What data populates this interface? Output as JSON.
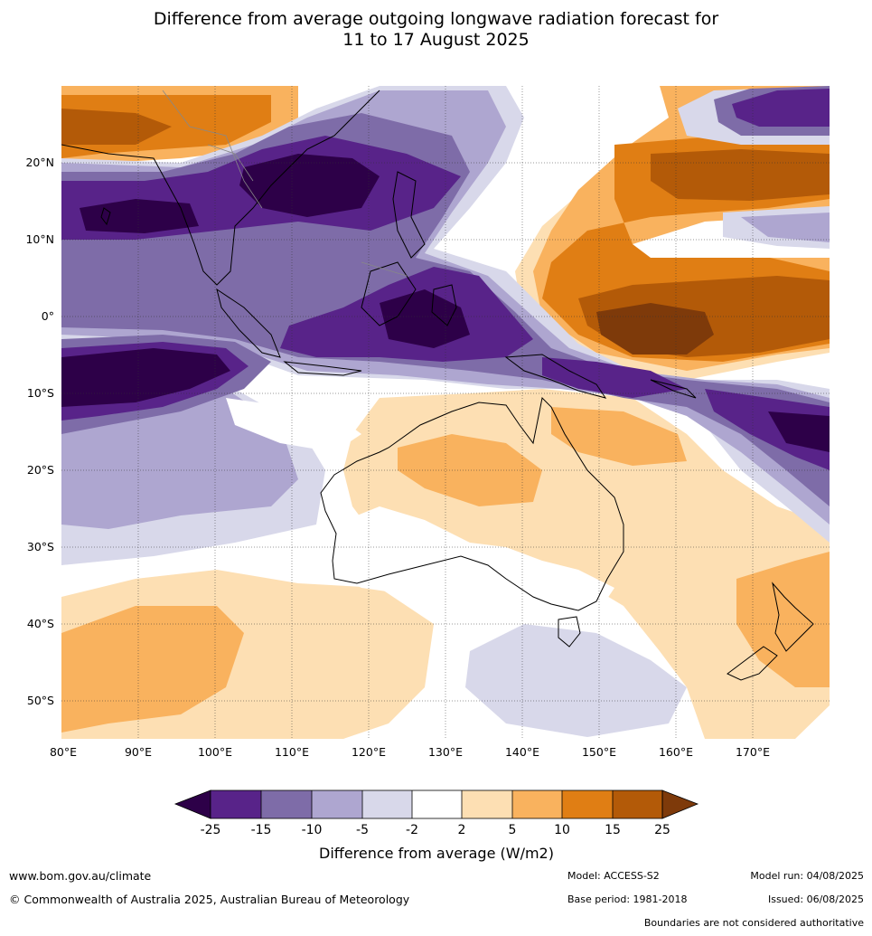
{
  "title": {
    "line1": "Difference from average outgoing longwave radiation forecast for",
    "line2": "11 to 17 August 2025"
  },
  "map": {
    "lat_labels": [
      "20°N",
      "10°N",
      "0°",
      "10°S",
      "20°S",
      "30°S",
      "40°S",
      "50°S"
    ],
    "lon_labels": [
      "80°E",
      "90°E",
      "100°E",
      "110°E",
      "120°E",
      "130°E",
      "140°E",
      "150°E",
      "160°E",
      "170°E"
    ],
    "ocean_fill": "#ffffff",
    "coastline_color": "#000000",
    "border_color": "#888888"
  },
  "legend": {
    "tick_labels": [
      "-25",
      "-15",
      "-10",
      "-5",
      "-2",
      "2",
      "5",
      "10",
      "15",
      "25"
    ],
    "colors": [
      "#2d0048",
      "#582389",
      "#7e6ca8",
      "#aea6d0",
      "#d8d8ea",
      "#ffffff",
      "#fddfb3",
      "#f9b25e",
      "#e07e14",
      "#b35a08",
      "#7e3a0a"
    ],
    "label": "Difference from average (W/m2)"
  },
  "footer": {
    "website": "www.bom.gov.au/climate",
    "copyright": "© Commonwealth of Australia 2025, Australian Bureau of Meteorology",
    "model": "Model: ACCESS-S2",
    "base_period": "Base period: 1981-2018",
    "model_run": "Model run: 04/08/2025",
    "issued": "Issued: 06/08/2025",
    "disclaimer": "Boundaries are not considered authoritative"
  }
}
